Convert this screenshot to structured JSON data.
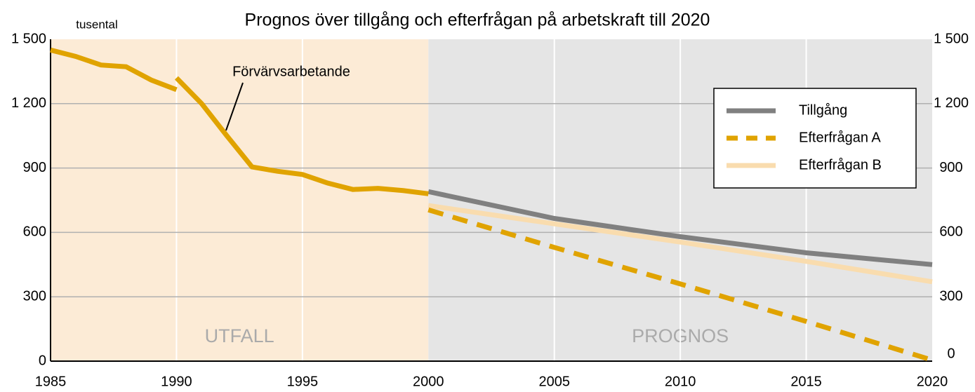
{
  "chart_data": {
    "type": "line",
    "title": "Prognos över tillgång och efterfrågan på arbetskraft till 2020",
    "y_unit_label": "tusental",
    "xlim": [
      1985,
      2020
    ],
    "xticks": [
      1985,
      1990,
      1995,
      2000,
      2005,
      2010,
      2015,
      2020
    ],
    "ylim": [
      0,
      1500
    ],
    "yticks": [
      0,
      300,
      600,
      900,
      {
        "value": 1200,
        "label": "1 200"
      },
      {
        "value": 1500,
        "label": "1 500"
      }
    ],
    "y2lim": [
      0,
      1500
    ],
    "y2ticks": [
      0,
      300,
      600,
      900,
      {
        "value": 1200,
        "label": "1 200"
      },
      {
        "value": 1500,
        "label": "1 500"
      }
    ],
    "grid": true,
    "regions": [
      {
        "label": "UTFALL",
        "from": 1985,
        "to": 2000,
        "color": "#fcebd6"
      },
      {
        "label": "PROGNOS",
        "from": 2000,
        "to": 2020,
        "color": "#e5e5e5"
      }
    ],
    "annotations": [
      {
        "text": "Förvärvsarbetande"
      }
    ],
    "legend": {
      "position": "upper right"
    },
    "series": [
      {
        "name": "Förvärvsarbetande",
        "legend": false,
        "color": "#e0a300",
        "style": "solid",
        "x": [
          1985,
          1986,
          1987,
          1988,
          1989,
          1990,
          1990,
          1990,
          1991,
          1992,
          1993,
          1994,
          1995,
          1996,
          1997,
          1998,
          1999,
          2000
        ],
        "values": [
          1450,
          1420,
          1380,
          1372,
          1310,
          1265,
          null,
          1320,
          1200,
          1050,
          905,
          885,
          870,
          830,
          800,
          805,
          795,
          780
        ]
      },
      {
        "name": "Tillgång",
        "color": "#808080",
        "style": "solid",
        "x": [
          2000,
          2005,
          2010,
          2015,
          2020
        ],
        "values": [
          790,
          665,
          580,
          505,
          450
        ]
      },
      {
        "name": "Efterfrågan A",
        "color": "#e0a300",
        "style": "dashed",
        "x": [
          2000,
          2005,
          2010,
          2015,
          2020
        ],
        "values": [
          705,
          530,
          360,
          185,
          5
        ]
      },
      {
        "name": "Efterfrågan B",
        "color": "#f9dcae",
        "style": "solid",
        "x": [
          2000,
          2005,
          2010,
          2015,
          2020
        ],
        "values": [
          725,
          640,
          555,
          465,
          370
        ]
      }
    ]
  }
}
